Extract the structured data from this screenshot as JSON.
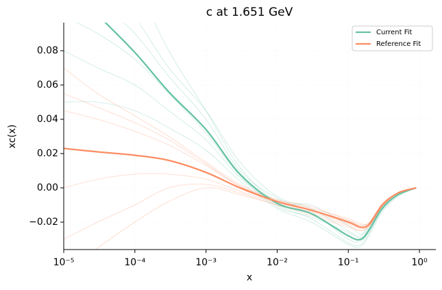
{
  "chart_data": {
    "type": "line",
    "title": "c at 1.651 GeV",
    "xlabel": "x",
    "ylabel": "xc(x)",
    "xscale": "log",
    "xlim": [
      1e-05,
      1.7
    ],
    "ylim": [
      -0.036,
      0.0964
    ],
    "xticks": [
      {
        "value": 1e-05,
        "label": "10⁻⁵"
      },
      {
        "value": 0.0001,
        "label": "10⁻⁴"
      },
      {
        "value": 0.001,
        "label": "10⁻³"
      },
      {
        "value": 0.01,
        "label": "10⁻²"
      },
      {
        "value": 0.1,
        "label": "10⁻¹"
      },
      {
        "value": 1,
        "label": "10⁰"
      }
    ],
    "yticks": [
      {
        "value": -0.02,
        "label": "−0.02"
      },
      {
        "value": 0,
        "label": "0.00"
      },
      {
        "value": 0.02,
        "label": "0.02"
      },
      {
        "value": 0.04,
        "label": "0.04"
      },
      {
        "value": 0.06,
        "label": "0.06"
      },
      {
        "value": 0.08,
        "label": "0.08"
      }
    ],
    "grid": true,
    "legend": "upper right",
    "x": [
      1e-05,
      3e-05,
      0.0001,
      0.0003,
      0.001,
      0.003,
      0.01,
      0.03,
      0.1,
      0.15,
      0.2,
      0.3,
      0.5,
      0.9
    ],
    "series": [
      {
        "name": "Current Fit",
        "color": "#66c2a5",
        "values": [
          0.122,
          0.101,
          0.079,
          0.056,
          0.034,
          0.008,
          -0.009,
          -0.015,
          -0.028,
          -0.03,
          -0.024,
          -0.012,
          -0.004,
          0.0
        ]
      },
      {
        "name": "Reference Fit",
        "color": "#fc8d62",
        "values": [
          0.023,
          0.021,
          0.019,
          0.016,
          0.009,
          0.0,
          -0.008,
          -0.013,
          -0.02,
          -0.023,
          -0.021,
          -0.01,
          -0.003,
          0.0
        ]
      }
    ],
    "replicas": [
      {
        "color": "#66c2a5",
        "values": [
          0.16,
          0.13,
          0.1,
          0.07,
          0.045,
          0.015,
          -0.005,
          -0.012,
          -0.025,
          -0.028,
          -0.02,
          -0.01,
          -0.003,
          0
        ]
      },
      {
        "color": "#66c2a5",
        "values": [
          0.08,
          0.07,
          0.06,
          0.045,
          0.028,
          0.006,
          -0.01,
          -0.018,
          -0.032,
          -0.033,
          -0.026,
          -0.013,
          -0.004,
          0
        ]
      },
      {
        "color": "#66c2a5",
        "values": [
          0.2,
          0.16,
          0.12,
          0.08,
          0.045,
          0.012,
          -0.008,
          -0.01,
          -0.022,
          -0.027,
          -0.022,
          -0.011,
          -0.003,
          0
        ]
      },
      {
        "color": "#66c2a5",
        "values": [
          0.05,
          0.05,
          0.045,
          0.035,
          0.022,
          0.004,
          -0.012,
          -0.02,
          -0.033,
          -0.034,
          -0.027,
          -0.014,
          -0.005,
          0
        ]
      },
      {
        "color": "#66c2a5",
        "values": [
          0.13,
          0.11,
          0.09,
          0.065,
          0.04,
          0.01,
          -0.006,
          -0.014,
          -0.03,
          -0.031,
          -0.025,
          -0.012,
          -0.004,
          0
        ]
      },
      {
        "color": "#66c2a5",
        "values": [
          0.1,
          0.09,
          0.075,
          0.055,
          0.032,
          0.007,
          -0.011,
          -0.017,
          -0.026,
          -0.029,
          -0.023,
          -0.012,
          -0.004,
          0
        ]
      },
      {
        "color": "#fc8d62",
        "values": [
          0.07,
          0.055,
          0.042,
          0.03,
          0.015,
          0.002,
          -0.007,
          -0.012,
          -0.018,
          -0.021,
          -0.02,
          -0.009,
          -0.003,
          0
        ]
      },
      {
        "color": "#fc8d62",
        "values": [
          -0.03,
          -0.02,
          -0.01,
          0.0,
          0.002,
          -0.003,
          -0.01,
          -0.015,
          -0.022,
          -0.025,
          -0.022,
          -0.011,
          -0.003,
          0
        ]
      },
      {
        "color": "#fc8d62",
        "values": [
          0.045,
          0.04,
          0.033,
          0.025,
          0.013,
          0.001,
          -0.007,
          -0.011,
          -0.019,
          -0.022,
          -0.02,
          -0.01,
          -0.003,
          0
        ]
      },
      {
        "color": "#fc8d62",
        "values": [
          0.0,
          0.005,
          0.008,
          0.008,
          0.005,
          -0.002,
          -0.009,
          -0.014,
          -0.021,
          -0.024,
          -0.021,
          -0.01,
          -0.003,
          0
        ]
      },
      {
        "color": "#fc8d62",
        "values": [
          0.055,
          0.047,
          0.038,
          0.028,
          0.014,
          0.001,
          -0.008,
          -0.013,
          -0.019,
          -0.022,
          -0.02,
          -0.01,
          -0.003,
          0
        ]
      },
      {
        "color": "#fc8d62",
        "values": [
          -0.05,
          -0.035,
          -0.02,
          -0.008,
          0.0,
          -0.004,
          -0.01,
          -0.016,
          -0.023,
          -0.025,
          -0.022,
          -0.011,
          -0.003,
          0
        ]
      }
    ]
  }
}
